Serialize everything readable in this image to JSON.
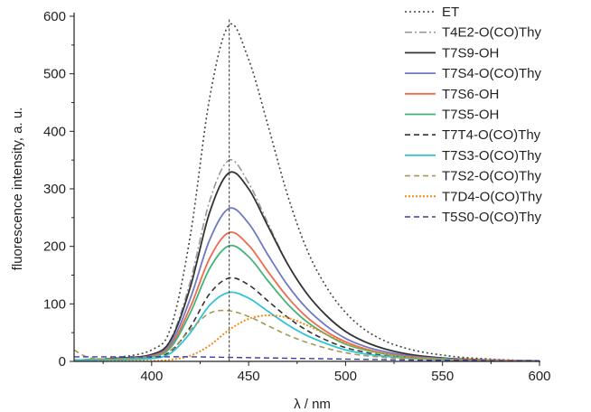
{
  "chart_data": {
    "type": "line",
    "title": "",
    "xlabel": "λ / nm",
    "ylabel": "fluorescence intensity, a. u.",
    "xlim": [
      360,
      600
    ],
    "ylim": [
      0,
      600
    ],
    "xticks": [
      400,
      450,
      500,
      550,
      600
    ],
    "yticks": [
      0,
      100,
      200,
      300,
      400,
      500,
      600
    ],
    "grid": false,
    "legend_position": "top-right",
    "marker_line_x": 440,
    "series": [
      {
        "name": "ET",
        "color": "#444444",
        "dash": "2,3",
        "width": 1.6,
        "x": [
          360,
          380,
          400,
          410,
          420,
          430,
          440,
          450,
          460,
          470,
          480,
          490,
          500,
          510,
          520,
          530,
          540,
          550,
          560,
          570,
          580,
          590,
          600
        ],
        "y": [
          2,
          6,
          20,
          60,
          220,
          460,
          585,
          525,
          410,
          290,
          195,
          130,
          85,
          55,
          36,
          24,
          16,
          11,
          7,
          5,
          3,
          2,
          1
        ]
      },
      {
        "name": "T4E2-O(CO)Thy",
        "color": "#999999",
        "dash": "8,3,2,3",
        "width": 1.6,
        "x": [
          360,
          380,
          400,
          410,
          420,
          430,
          440,
          450,
          460,
          470,
          480,
          490,
          500,
          510,
          520,
          530,
          540,
          550,
          560,
          580,
          600
        ],
        "y": [
          2,
          5,
          12,
          40,
          140,
          280,
          350,
          310,
          240,
          170,
          118,
          80,
          52,
          34,
          22,
          14,
          9,
          6,
          4,
          2,
          1
        ]
      },
      {
        "name": "T7S9-OH",
        "color": "#333333",
        "dash": "",
        "width": 1.8,
        "x": [
          360,
          380,
          400,
          410,
          420,
          430,
          440,
          450,
          460,
          470,
          480,
          490,
          500,
          510,
          520,
          530,
          540,
          550,
          560,
          580,
          600
        ],
        "y": [
          2,
          5,
          12,
          38,
          130,
          260,
          328,
          300,
          235,
          170,
          118,
          80,
          52,
          34,
          22,
          14,
          9,
          6,
          4,
          2,
          1
        ]
      },
      {
        "name": "T7S4-O(CO)Thy",
        "color": "#6f79c4",
        "dash": "",
        "width": 1.8,
        "x": [
          360,
          380,
          400,
          410,
          420,
          430,
          440,
          450,
          460,
          470,
          480,
          490,
          500,
          510,
          520,
          530,
          540,
          550,
          560,
          580,
          600
        ],
        "y": [
          2,
          4,
          10,
          32,
          110,
          212,
          266,
          240,
          185,
          133,
          92,
          62,
          40,
          26,
          17,
          11,
          7,
          5,
          3,
          2,
          1
        ]
      },
      {
        "name": "T7S6-OH",
        "color": "#ee6a50",
        "dash": "",
        "width": 1.8,
        "x": [
          360,
          380,
          400,
          410,
          420,
          430,
          440,
          450,
          460,
          470,
          480,
          490,
          500,
          510,
          520,
          530,
          540,
          550,
          560,
          580,
          600
        ],
        "y": [
          2,
          4,
          9,
          28,
          95,
          180,
          224,
          202,
          156,
          112,
          77,
          52,
          34,
          22,
          14,
          9,
          6,
          4,
          3,
          2,
          1
        ]
      },
      {
        "name": "T7S5-OH",
        "color": "#44b37a",
        "dash": "",
        "width": 1.8,
        "x": [
          360,
          380,
          400,
          410,
          420,
          430,
          440,
          450,
          460,
          470,
          480,
          490,
          500,
          510,
          520,
          530,
          540,
          550,
          560,
          580,
          600
        ],
        "y": [
          2,
          4,
          8,
          25,
          85,
          162,
          201,
          182,
          140,
          100,
          69,
          47,
          30,
          20,
          13,
          8,
          5,
          4,
          2,
          1,
          1
        ]
      },
      {
        "name": "T7T4-O(CO)Thy",
        "color": "#333333",
        "dash": "6,4",
        "width": 1.6,
        "x": [
          360,
          380,
          400,
          410,
          420,
          430,
          440,
          450,
          460,
          470,
          480,
          490,
          500,
          510,
          520,
          530,
          540,
          550,
          560,
          580,
          600
        ],
        "y": [
          2,
          3,
          6,
          18,
          60,
          118,
          145,
          133,
          105,
          77,
          54,
          37,
          24,
          16,
          10,
          7,
          4,
          3,
          2,
          1,
          1
        ]
      },
      {
        "name": "T7S3-O(CO)Thy",
        "color": "#2fc4d8",
        "dash": "",
        "width": 1.8,
        "x": [
          360,
          380,
          400,
          410,
          420,
          430,
          440,
          450,
          460,
          470,
          480,
          490,
          500,
          510,
          520,
          530,
          540,
          550,
          560,
          580,
          600
        ],
        "y": [
          2,
          3,
          5,
          15,
          50,
          98,
          120,
          110,
          87,
          64,
          45,
          31,
          20,
          13,
          9,
          6,
          4,
          3,
          2,
          1,
          1
        ]
      },
      {
        "name": "T7S2-O(CO)Thy",
        "color": "#a39a55",
        "dash": "6,4",
        "width": 1.6,
        "x": [
          360,
          365,
          370,
          380,
          390,
          400,
          410,
          420,
          430,
          440,
          450,
          460,
          470,
          480,
          490,
          500,
          510,
          520,
          530,
          540,
          550,
          560,
          580,
          600
        ],
        "y": [
          20,
          10,
          5,
          4,
          5,
          8,
          20,
          55,
          84,
          88,
          78,
          62,
          46,
          33,
          23,
          15,
          10,
          7,
          5,
          3,
          2,
          2,
          1,
          1
        ]
      },
      {
        "name": "T7D4-O(CO)Thy",
        "color": "#f08a1c",
        "dash": "2,2",
        "width": 2.0,
        "x": [
          360,
          400,
          410,
          420,
          430,
          440,
          450,
          460,
          470,
          480,
          490,
          500,
          510,
          520,
          530,
          540,
          550,
          560,
          580,
          600
        ],
        "y": [
          0,
          1,
          3,
          10,
          28,
          55,
          74,
          80,
          76,
          63,
          47,
          32,
          21,
          13,
          8,
          5,
          3,
          2,
          1,
          0
        ]
      },
      {
        "name": "T5S0-O(CO)Thy",
        "color": "#3c3ca0",
        "dash": "6,4",
        "width": 1.4,
        "x": [
          360,
          400,
          420,
          440,
          460,
          480,
          500,
          520,
          540,
          560,
          580,
          600
        ],
        "y": [
          8,
          8,
          8,
          7,
          6,
          5,
          4,
          3,
          2,
          2,
          1,
          1
        ]
      }
    ]
  }
}
